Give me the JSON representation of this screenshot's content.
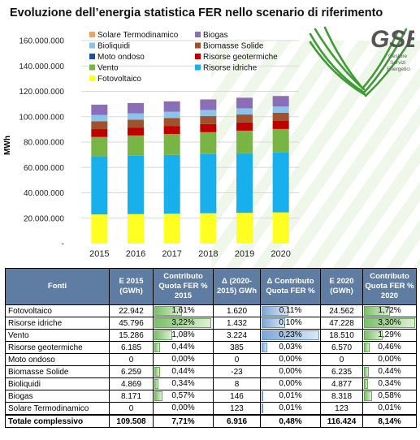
{
  "title": "Evoluzione dell’energia statistica FER nello scenario di riferimento",
  "logo": {
    "name": "GSE",
    "subtitle_lines": [
      "Gestore",
      "Servizi",
      "Energetici"
    ]
  },
  "colors": {
    "Solare Termodinamico": "#f5a15a",
    "Biogas": "#8a6fb8",
    "Bioliquidi": "#8ec2e8",
    "Biomasse Solide": "#a0522d",
    "Moto ondoso": "#1f4e9c",
    "Risorse geotermiche": "#c00000",
    "Vento": "#79b544",
    "Risorse idriche": "#17b0ec",
    "Fotovoltaico": "#ffff22"
  },
  "chart_data": {
    "type": "bar",
    "stacked": true,
    "categories": [
      "2015",
      "2016",
      "2017",
      "2018",
      "2019",
      "2020"
    ],
    "ylabel": "MWh",
    "ylim": [
      0,
      160000000
    ],
    "yticks": [
      "-",
      "20.000.000",
      "40.000.000",
      "60.000.000",
      "80.000.000",
      "100.000.000",
      "120.000.000",
      "140.000.000",
      "160.000.000"
    ],
    "grid": true,
    "legend_position": "top-left",
    "series": [
      {
        "name": "Fotovoltaico",
        "values": [
          22942000,
          23200000,
          23500000,
          23900000,
          24200000,
          24562000
        ]
      },
      {
        "name": "Risorse idriche",
        "values": [
          45796000,
          46100000,
          46400000,
          46700000,
          47000000,
          47228000
        ]
      },
      {
        "name": "Vento",
        "values": [
          15286000,
          15900000,
          16500000,
          17200000,
          17800000,
          18510000
        ]
      },
      {
        "name": "Risorse geotermiche",
        "values": [
          6185000,
          6260000,
          6330000,
          6410000,
          6490000,
          6570000
        ]
      },
      {
        "name": "Moto ondoso",
        "values": [
          0,
          0,
          0,
          0,
          0,
          0
        ]
      },
      {
        "name": "Biomasse Solide",
        "values": [
          6259000,
          6254000,
          6250000,
          6245000,
          6240000,
          6235000
        ]
      },
      {
        "name": "Bioliquidi",
        "values": [
          4869000,
          4870000,
          4872000,
          4874000,
          4875000,
          4877000
        ]
      },
      {
        "name": "Biogas",
        "values": [
          8171000,
          8200000,
          8230000,
          8260000,
          8290000,
          8318000
        ]
      },
      {
        "name": "Solare Termodinamico",
        "values": [
          0,
          25000,
          50000,
          75000,
          100000,
          123000
        ]
      }
    ],
    "legend_order": [
      "Solare Termodinamico",
      "Biogas",
      "Bioliquidi",
      "Biomasse Solide",
      "Moto ondoso",
      "Risorse geotermiche",
      "Vento",
      "Risorse idriche",
      "Fotovoltaico"
    ]
  },
  "table": {
    "headers": [
      "Fonti",
      "E 2015 (GWh)",
      "Contributo Quota FER % 2015",
      "Δ (2020-2015) GWh",
      "Δ Contributo Quota FER %",
      "E 2020 (GWh)",
      "Contributo Quota FER % 2020"
    ],
    "rows": [
      {
        "fonti": "Fotovoltaico",
        "e2015": "22.942",
        "c2015": "1,61%",
        "delta": "1.620",
        "dcontrib": "0,11%",
        "e2020": "24.562",
        "c2020": "1,72%",
        "c2015_frac": 0.49,
        "dcontrib_frac": 0.48,
        "c2020_frac": 0.52
      },
      {
        "fonti": "Risorse idriche",
        "e2015": "45.796",
        "c2015": "3,22%",
        "delta": "1.432",
        "dcontrib": "0,10%",
        "e2020": "47.228",
        "c2020": "3,30%",
        "c2015_frac": 0.98,
        "dcontrib_frac": 0.43,
        "c2020_frac": 1.0
      },
      {
        "fonti": "Vento",
        "e2015": "15.286",
        "c2015": "1,08%",
        "delta": "3.224",
        "dcontrib": "0,23%",
        "e2020": "18.510",
        "c2020": "1,29%",
        "c2015_frac": 0.33,
        "dcontrib_frac": 1.0,
        "c2020_frac": 0.39
      },
      {
        "fonti": "Risorse geotermiche",
        "e2015": "6.185",
        "c2015": "0,44%",
        "delta": "385",
        "dcontrib": "0,03%",
        "e2020": "6.570",
        "c2020": "0,46%",
        "c2015_frac": 0.13,
        "dcontrib_frac": 0.13,
        "c2020_frac": 0.14
      },
      {
        "fonti": "Moto ondoso",
        "e2015": "0",
        "c2015": "0,00%",
        "delta": "0",
        "dcontrib": "0,00%",
        "e2020": "0",
        "c2020": "0,00%",
        "c2015_frac": 0,
        "dcontrib_frac": 0,
        "c2020_frac": 0
      },
      {
        "fonti": "Biomasse Solide",
        "e2015": "6.259",
        "c2015": "0,44%",
        "delta": "-23",
        "dcontrib": "0,00%",
        "e2020": "6.235",
        "c2020": "0,44%",
        "c2015_frac": 0.13,
        "dcontrib_frac": 0,
        "c2020_frac": 0.13
      },
      {
        "fonti": "Bioliquidi",
        "e2015": "4.869",
        "c2015": "0,34%",
        "delta": "8",
        "dcontrib": "0,00%",
        "e2020": "4.877",
        "c2020": "0,34%",
        "c2015_frac": 0.1,
        "dcontrib_frac": 0,
        "c2020_frac": 0.1
      },
      {
        "fonti": "Biogas",
        "e2015": "8.171",
        "c2015": "0,57%",
        "delta": "146",
        "dcontrib": "0,01%",
        "e2020": "8.318",
        "c2020": "0,58%",
        "c2015_frac": 0.17,
        "dcontrib_frac": 0.04,
        "c2020_frac": 0.18
      },
      {
        "fonti": "Solare Termodinamico",
        "e2015": "0",
        "c2015": "0,00%",
        "delta": "123",
        "dcontrib": "0,01%",
        "e2020": "123",
        "c2020": "0,01%",
        "c2015_frac": 0,
        "dcontrib_frac": 0.04,
        "c2020_frac": 0
      }
    ],
    "total": {
      "fonti": "Totale complessivo",
      "e2015": "109.508",
      "c2015": "7,71%",
      "delta": "6.916",
      "dcontrib": "0,48%",
      "e2020": "116.424",
      "c2020": "8,14%"
    }
  }
}
